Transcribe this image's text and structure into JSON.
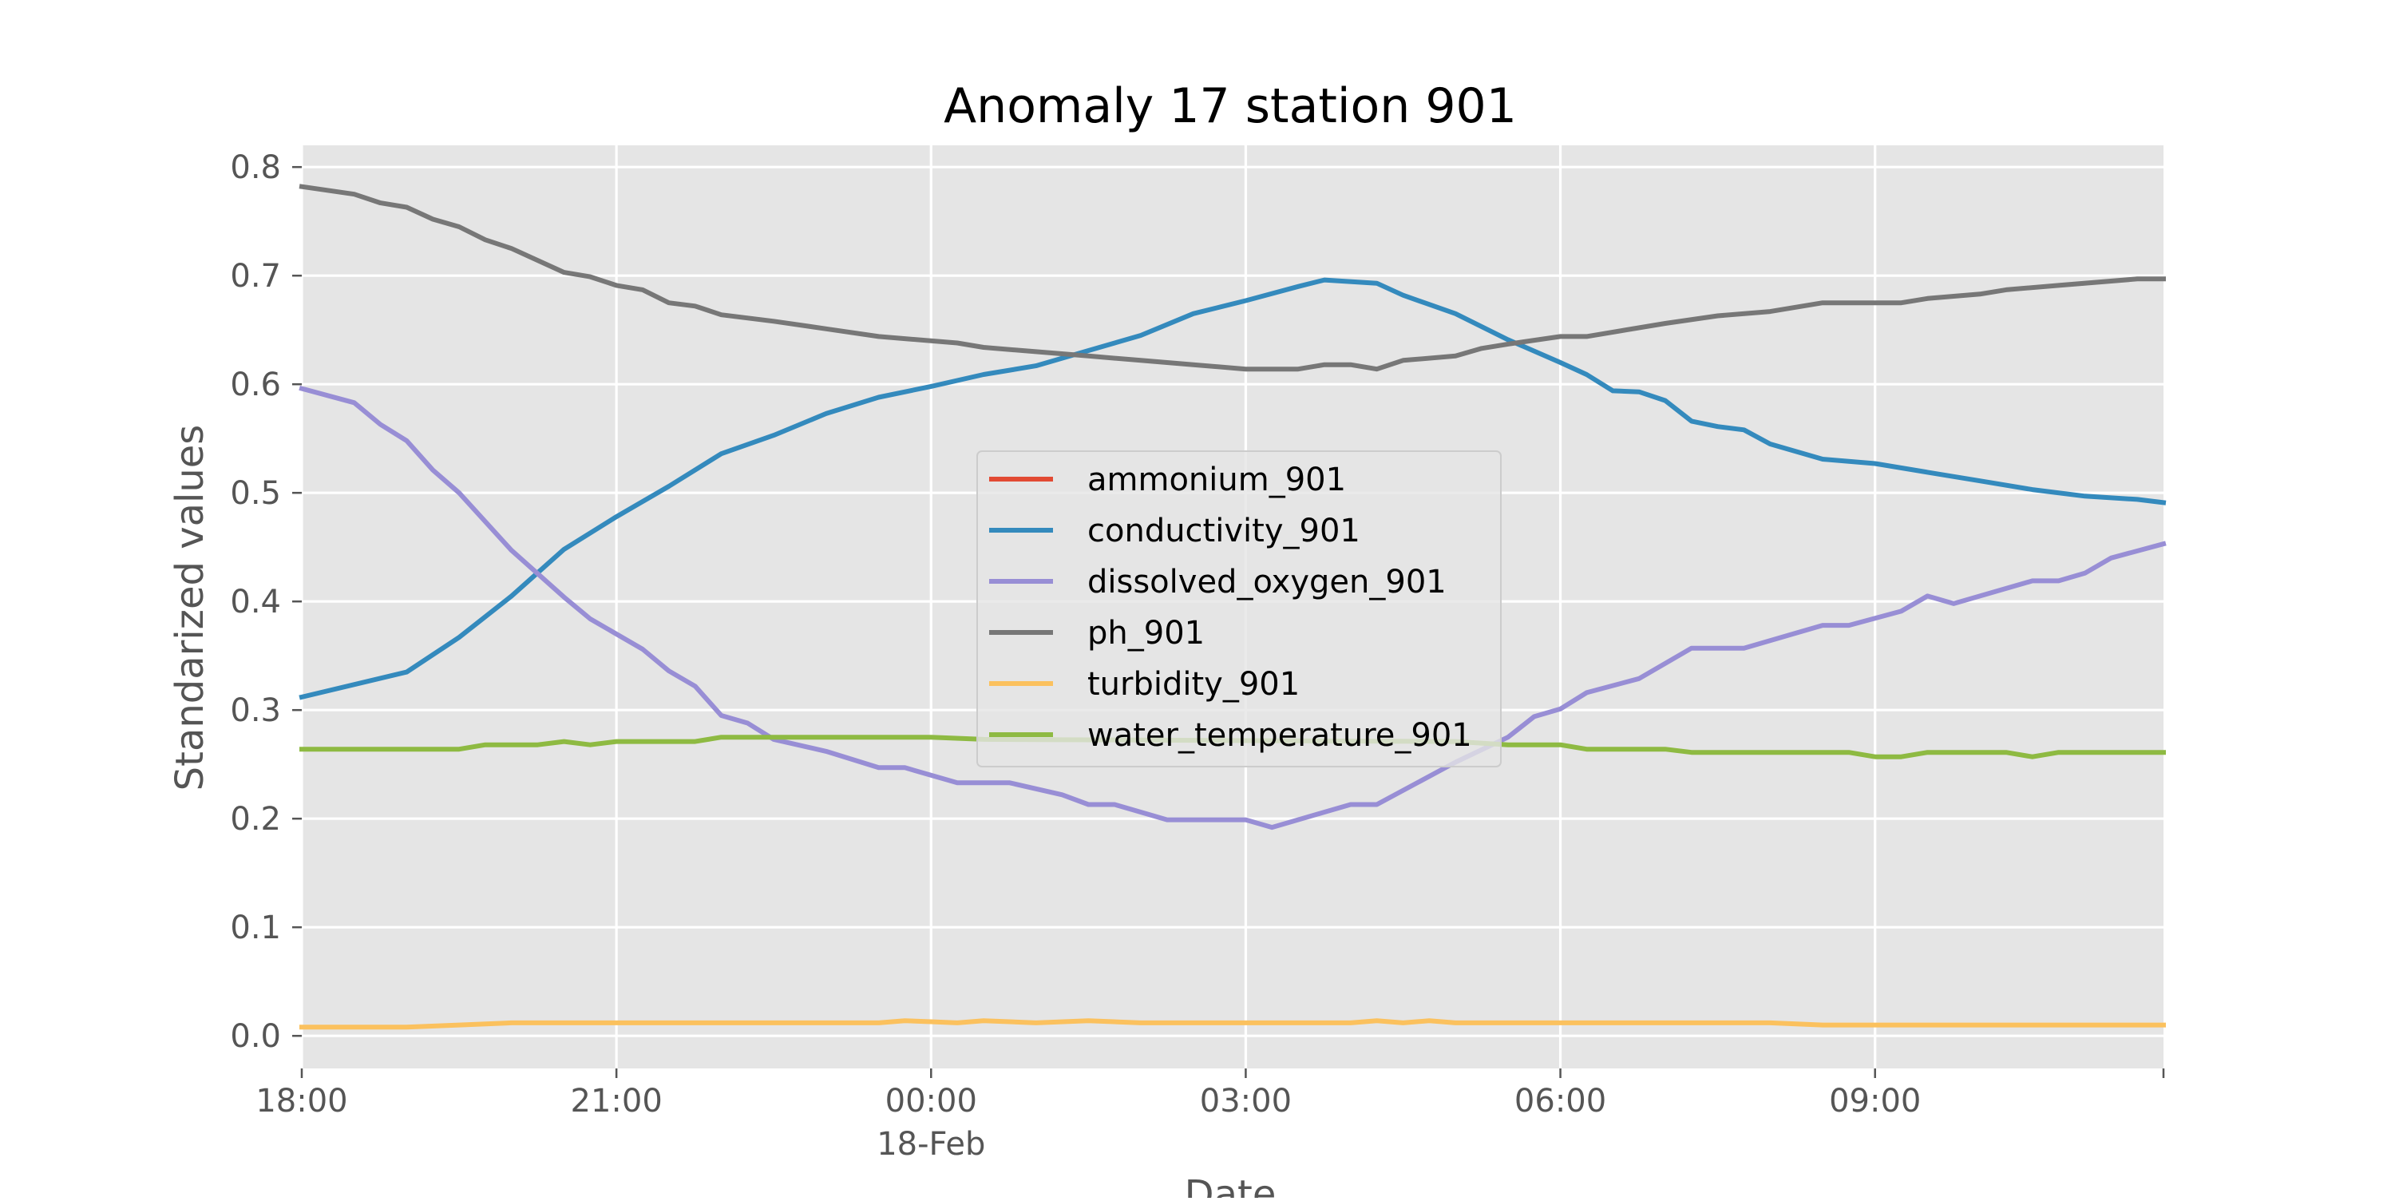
{
  "chart_data": {
    "type": "line",
    "title": "Anomaly 17 station 901",
    "xlabel": "Date",
    "ylabel": "Standarized values",
    "x_range": [
      "2024-02-17T18:00",
      "2024-02-18T11:45"
    ],
    "ylim": [
      -0.03,
      0.82
    ],
    "x_ticks": [
      {
        "x": "2024-02-17T18:00",
        "label": "18:00",
        "sublabel": ""
      },
      {
        "x": "2024-02-17T21:00",
        "label": "21:00",
        "sublabel": ""
      },
      {
        "x": "2024-02-18T00:00",
        "label": "00:00",
        "sublabel": "18-Feb"
      },
      {
        "x": "2024-02-18T03:00",
        "label": "03:00",
        "sublabel": ""
      },
      {
        "x": "2024-02-18T06:00",
        "label": "06:00",
        "sublabel": ""
      },
      {
        "x": "2024-02-18T09:00",
        "label": "09:00",
        "sublabel": ""
      }
    ],
    "y_ticks": [
      "0.0",
      "0.1",
      "0.2",
      "0.3",
      "0.4",
      "0.5",
      "0.6",
      "0.7",
      "0.8"
    ],
    "grid": true,
    "legend_position": "center",
    "series": [
      {
        "name": "ammonium_901",
        "color": "#E24A33",
        "points": []
      },
      {
        "name": "conductivity_901",
        "color": "#348ABD",
        "points": [
          [
            "2024-02-17T18:00",
            0.312
          ],
          [
            "2024-02-17T19:00",
            0.335
          ],
          [
            "2024-02-17T19:30",
            0.367
          ],
          [
            "2024-02-17T20:00",
            0.405
          ],
          [
            "2024-02-17T20:30",
            0.448
          ],
          [
            "2024-02-17T21:00",
            0.478
          ],
          [
            "2024-02-17T21:30",
            0.506
          ],
          [
            "2024-02-17T22:00",
            0.536
          ],
          [
            "2024-02-17T22:30",
            0.553
          ],
          [
            "2024-02-17T23:00",
            0.573
          ],
          [
            "2024-02-17T23:30",
            0.588
          ],
          [
            "2024-02-18T00:00",
            0.598
          ],
          [
            "2024-02-18T00:30",
            0.609
          ],
          [
            "2024-02-18T01:00",
            0.617
          ],
          [
            "2024-02-18T01:30",
            0.631
          ],
          [
            "2024-02-18T02:00",
            0.645
          ],
          [
            "2024-02-18T02:30",
            0.665
          ],
          [
            "2024-02-18T03:00",
            0.677
          ],
          [
            "2024-02-18T03:30",
            0.69
          ],
          [
            "2024-02-18T03:45",
            0.696
          ],
          [
            "2024-02-18T04:15",
            0.693
          ],
          [
            "2024-02-18T04:30",
            0.682
          ],
          [
            "2024-02-18T05:00",
            0.665
          ],
          [
            "2024-02-18T05:30",
            0.641
          ],
          [
            "2024-02-18T06:00",
            0.62
          ],
          [
            "2024-02-18T06:15",
            0.609
          ],
          [
            "2024-02-18T06:30",
            0.594
          ],
          [
            "2024-02-18T06:45",
            0.593
          ],
          [
            "2024-02-18T07:00",
            0.585
          ],
          [
            "2024-02-18T07:15",
            0.566
          ],
          [
            "2024-02-18T07:30",
            0.561
          ],
          [
            "2024-02-18T07:45",
            0.558
          ],
          [
            "2024-02-18T08:00",
            0.545
          ],
          [
            "2024-02-18T08:30",
            0.531
          ],
          [
            "2024-02-18T09:00",
            0.527
          ],
          [
            "2024-02-18T09:30",
            0.519
          ],
          [
            "2024-02-18T10:00",
            0.511
          ],
          [
            "2024-02-18T10:30",
            0.503
          ],
          [
            "2024-02-18T11:00",
            0.497
          ],
          [
            "2024-02-18T11:30",
            0.494
          ],
          [
            "2024-02-18T11:45",
            0.491
          ]
        ]
      },
      {
        "name": "dissolved_oxygen_901",
        "color": "#988ED5",
        "points": [
          [
            "2024-02-17T18:00",
            0.596
          ],
          [
            "2024-02-17T18:30",
            0.583
          ],
          [
            "2024-02-17T18:45",
            0.563
          ],
          [
            "2024-02-17T19:00",
            0.548
          ],
          [
            "2024-02-17T19:15",
            0.521
          ],
          [
            "2024-02-17T19:30",
            0.5
          ],
          [
            "2024-02-17T20:00",
            0.447
          ],
          [
            "2024-02-17T20:30",
            0.404
          ],
          [
            "2024-02-17T20:45",
            0.384
          ],
          [
            "2024-02-17T21:15",
            0.356
          ],
          [
            "2024-02-17T21:30",
            0.336
          ],
          [
            "2024-02-17T21:45",
            0.322
          ],
          [
            "2024-02-17T22:00",
            0.295
          ],
          [
            "2024-02-17T22:15",
            0.288
          ],
          [
            "2024-02-17T22:30",
            0.273
          ],
          [
            "2024-02-17T23:00",
            0.262
          ],
          [
            "2024-02-17T23:30",
            0.247
          ],
          [
            "2024-02-17T23:45",
            0.247
          ],
          [
            "2024-02-18T00:15",
            0.233
          ],
          [
            "2024-02-18T00:45",
            0.233
          ],
          [
            "2024-02-18T01:15",
            0.222
          ],
          [
            "2024-02-18T01:30",
            0.213
          ],
          [
            "2024-02-18T01:45",
            0.213
          ],
          [
            "2024-02-18T02:15",
            0.199
          ],
          [
            "2024-02-18T03:00",
            0.199
          ],
          [
            "2024-02-18T03:15",
            0.192
          ],
          [
            "2024-02-18T03:45",
            0.206
          ],
          [
            "2024-02-18T04:00",
            0.213
          ],
          [
            "2024-02-18T04:15",
            0.213
          ],
          [
            "2024-02-18T05:00",
            0.252
          ],
          [
            "2024-02-18T05:30",
            0.275
          ],
          [
            "2024-02-18T05:45",
            0.294
          ],
          [
            "2024-02-18T06:00",
            0.301
          ],
          [
            "2024-02-18T06:15",
            0.316
          ],
          [
            "2024-02-18T06:45",
            0.329
          ],
          [
            "2024-02-18T07:15",
            0.357
          ],
          [
            "2024-02-18T07:45",
            0.357
          ],
          [
            "2024-02-18T08:15",
            0.371
          ],
          [
            "2024-02-18T08:30",
            0.378
          ],
          [
            "2024-02-18T08:45",
            0.378
          ],
          [
            "2024-02-18T09:15",
            0.391
          ],
          [
            "2024-02-18T09:30",
            0.405
          ],
          [
            "2024-02-18T09:45",
            0.398
          ],
          [
            "2024-02-18T10:30",
            0.419
          ],
          [
            "2024-02-18T10:45",
            0.419
          ],
          [
            "2024-02-18T11:00",
            0.426
          ],
          [
            "2024-02-18T11:15",
            0.44
          ],
          [
            "2024-02-18T11:45",
            0.453
          ]
        ]
      },
      {
        "name": "ph_901",
        "color": "#777777",
        "points": [
          [
            "2024-02-17T18:00",
            0.782
          ],
          [
            "2024-02-17T18:30",
            0.775
          ],
          [
            "2024-02-17T18:45",
            0.767
          ],
          [
            "2024-02-17T19:00",
            0.763
          ],
          [
            "2024-02-17T19:15",
            0.752
          ],
          [
            "2024-02-17T19:30",
            0.745
          ],
          [
            "2024-02-17T19:45",
            0.733
          ],
          [
            "2024-02-17T20:00",
            0.725
          ],
          [
            "2024-02-17T20:30",
            0.703
          ],
          [
            "2024-02-17T20:45",
            0.699
          ],
          [
            "2024-02-17T21:00",
            0.691
          ],
          [
            "2024-02-17T21:15",
            0.687
          ],
          [
            "2024-02-17T21:30",
            0.675
          ],
          [
            "2024-02-17T21:45",
            0.672
          ],
          [
            "2024-02-17T22:00",
            0.664
          ],
          [
            "2024-02-17T22:30",
            0.658
          ],
          [
            "2024-02-17T23:00",
            0.651
          ],
          [
            "2024-02-17T23:30",
            0.644
          ],
          [
            "2024-02-17T23:45",
            0.642
          ],
          [
            "2024-02-18T00:15",
            0.638
          ],
          [
            "2024-02-18T00:30",
            0.634
          ],
          [
            "2024-02-18T01:00",
            0.63
          ],
          [
            "2024-02-18T01:30",
            0.626
          ],
          [
            "2024-02-18T02:00",
            0.622
          ],
          [
            "2024-02-18T02:30",
            0.618
          ],
          [
            "2024-02-18T03:00",
            0.614
          ],
          [
            "2024-02-18T03:30",
            0.614
          ],
          [
            "2024-02-18T03:45",
            0.618
          ],
          [
            "2024-02-18T04:00",
            0.618
          ],
          [
            "2024-02-18T04:15",
            0.614
          ],
          [
            "2024-02-18T04:30",
            0.622
          ],
          [
            "2024-02-18T05:00",
            0.626
          ],
          [
            "2024-02-18T05:15",
            0.633
          ],
          [
            "2024-02-18T05:30",
            0.637
          ],
          [
            "2024-02-18T06:00",
            0.644
          ],
          [
            "2024-02-18T06:15",
            0.644
          ],
          [
            "2024-02-18T07:00",
            0.656
          ],
          [
            "2024-02-18T07:30",
            0.663
          ],
          [
            "2024-02-18T08:00",
            0.667
          ],
          [
            "2024-02-18T08:30",
            0.675
          ],
          [
            "2024-02-18T09:15",
            0.675
          ],
          [
            "2024-02-18T09:30",
            0.679
          ],
          [
            "2024-02-18T10:00",
            0.683
          ],
          [
            "2024-02-18T10:15",
            0.687
          ],
          [
            "2024-02-18T10:45",
            0.691
          ],
          [
            "2024-02-18T11:30",
            0.697
          ],
          [
            "2024-02-18T11:45",
            0.697
          ]
        ]
      },
      {
        "name": "turbidity_901",
        "color": "#FBC15E",
        "points": [
          [
            "2024-02-17T18:00",
            0.008
          ],
          [
            "2024-02-17T19:00",
            0.008
          ],
          [
            "2024-02-17T19:30",
            0.01
          ],
          [
            "2024-02-17T20:00",
            0.012
          ],
          [
            "2024-02-17T23:30",
            0.012
          ],
          [
            "2024-02-17T23:45",
            0.014
          ],
          [
            "2024-02-18T00:00",
            0.013
          ],
          [
            "2024-02-18T00:15",
            0.012
          ],
          [
            "2024-02-18T00:30",
            0.014
          ],
          [
            "2024-02-18T01:00",
            0.012
          ],
          [
            "2024-02-18T01:30",
            0.014
          ],
          [
            "2024-02-18T02:00",
            0.012
          ],
          [
            "2024-02-18T04:00",
            0.012
          ],
          [
            "2024-02-18T04:15",
            0.014
          ],
          [
            "2024-02-18T04:30",
            0.012
          ],
          [
            "2024-02-18T04:45",
            0.014
          ],
          [
            "2024-02-18T05:00",
            0.012
          ],
          [
            "2024-02-18T08:00",
            0.012
          ],
          [
            "2024-02-18T08:30",
            0.01
          ],
          [
            "2024-02-18T11:45",
            0.01
          ]
        ]
      },
      {
        "name": "water_temperature_901",
        "color": "#8EBA42",
        "points": [
          [
            "2024-02-17T18:00",
            0.264
          ],
          [
            "2024-02-17T19:30",
            0.264
          ],
          [
            "2024-02-17T19:45",
            0.268
          ],
          [
            "2024-02-17T20:15",
            0.268
          ],
          [
            "2024-02-17T20:30",
            0.271
          ],
          [
            "2024-02-17T20:45",
            0.268
          ],
          [
            "2024-02-17T21:00",
            0.271
          ],
          [
            "2024-02-17T21:45",
            0.271
          ],
          [
            "2024-02-17T22:00",
            0.275
          ],
          [
            "2024-02-18T00:00",
            0.275
          ],
          [
            "2024-02-18T00:30",
            0.273
          ],
          [
            "2024-02-18T05:00",
            0.271
          ],
          [
            "2024-02-18T05:30",
            0.268
          ],
          [
            "2024-02-18T06:00",
            0.268
          ],
          [
            "2024-02-18T06:15",
            0.264
          ],
          [
            "2024-02-18T07:00",
            0.264
          ],
          [
            "2024-02-18T07:15",
            0.261
          ],
          [
            "2024-02-18T08:45",
            0.261
          ],
          [
            "2024-02-18T09:00",
            0.257
          ],
          [
            "2024-02-18T09:15",
            0.257
          ],
          [
            "2024-02-18T09:30",
            0.261
          ],
          [
            "2024-02-18T10:15",
            0.261
          ],
          [
            "2024-02-18T10:30",
            0.257
          ],
          [
            "2024-02-18T10:45",
            0.261
          ],
          [
            "2024-02-18T11:45",
            0.261
          ]
        ]
      }
    ]
  },
  "colors": {
    "figure_background": "#ffffff",
    "plot_background": "#E5E5E5",
    "grid": "#ffffff",
    "legend_background": "#E5E5E5",
    "legend_border": "#CCCCCC",
    "tick_color": "#555555"
  }
}
